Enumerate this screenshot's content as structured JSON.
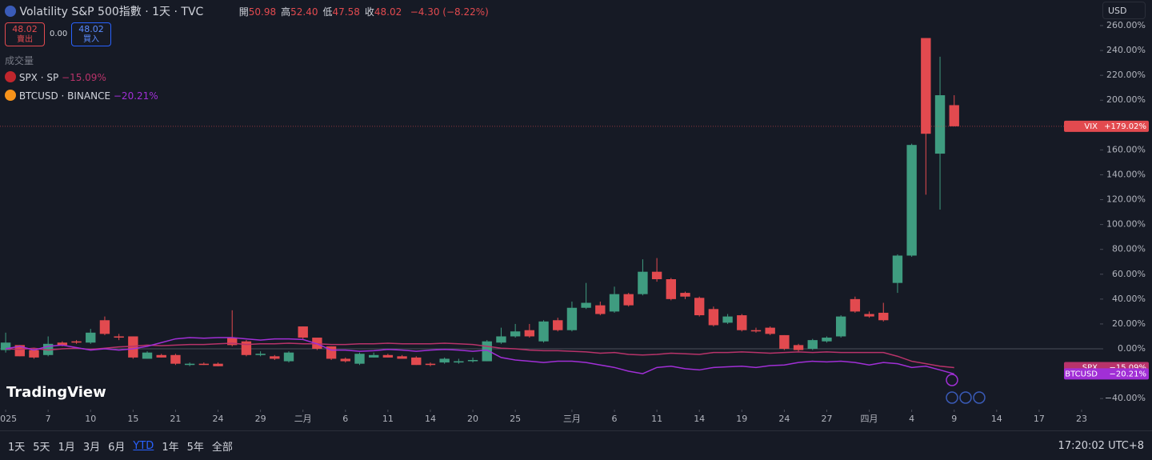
{
  "header": {
    "title": "Volatility S&P 500指數 · 1天 · TVC",
    "ohlc": [
      {
        "label": "開",
        "value": "50.98"
      },
      {
        "label": "高",
        "value": "52.40"
      },
      {
        "label": "低",
        "value": "47.58"
      },
      {
        "label": "收",
        "value": "48.02"
      }
    ],
    "change": "−4.30 (−8.22%)",
    "sell_price": "48.02",
    "sell_label": "賣出",
    "spread": "0.00",
    "buy_price": "48.02",
    "buy_label": "買入",
    "volume_label": "成交量",
    "currency": "USD"
  },
  "chart_data": {
    "type": "candlestick",
    "name": "VIX",
    "last_label": "+179.02%",
    "up_color": "#3f9c80",
    "down_color": "#e24a4f",
    "open": [
      -1,
      3,
      -1,
      -5,
      5,
      6,
      5,
      23,
      10,
      10,
      -8,
      -5,
      -5,
      -13,
      -12,
      -12,
      9,
      6,
      -5,
      -6,
      -10,
      18,
      9,
      2,
      -8,
      -12,
      -7,
      -5,
      -6,
      -7,
      -12,
      -11,
      -11,
      -10,
      -10,
      5,
      10,
      15,
      6,
      23,
      15,
      33,
      35,
      30,
      44,
      44,
      62,
      56,
      45,
      41,
      32,
      21,
      27,
      15,
      17,
      11,
      3,
      0,
      6,
      10,
      40,
      28,
      29,
      53,
      75,
      250,
      157,
      196
    ],
    "high": [
      13,
      3,
      0,
      10,
      6,
      7,
      16,
      26,
      12,
      10,
      -2,
      -4,
      -4,
      -11,
      -11,
      -11,
      31,
      7,
      -2,
      -5,
      -2,
      18,
      9,
      2,
      -7,
      -3,
      -3,
      -4,
      -5,
      -6,
      -11,
      -7,
      -8,
      -7,
      7,
      17,
      20,
      20,
      23,
      25,
      38,
      53,
      38,
      50,
      45,
      72,
      73,
      57,
      46,
      42,
      34,
      28,
      28,
      17,
      18,
      11,
      4,
      8,
      10,
      27,
      42,
      30,
      37,
      76,
      165,
      250,
      235,
      204
    ],
    "low": [
      -3,
      -6,
      -8,
      -6,
      2,
      4,
      4,
      11,
      7,
      -8,
      -8,
      -7,
      -13,
      -14,
      -13,
      -14,
      2,
      -6,
      -6,
      -9,
      -11,
      8,
      -1,
      -9,
      -11,
      -13,
      -7,
      -7,
      -8,
      -13,
      -14,
      -12,
      -12,
      -11,
      -10,
      4,
      9,
      9,
      5,
      14,
      14,
      32,
      27,
      29,
      34,
      43,
      54,
      39,
      40,
      26,
      18,
      20,
      14,
      13,
      11,
      -1,
      -2,
      -1,
      5,
      9,
      29,
      25,
      22,
      45,
      74,
      124,
      112,
      179.02
    ],
    "close": [
      5,
      -6,
      -7,
      4,
      3,
      5,
      13,
      12,
      9,
      -7,
      -3,
      -7,
      -12,
      -12,
      -13,
      -14,
      3,
      -5,
      -4,
      -8,
      -3,
      9,
      0,
      -8,
      -10,
      -4,
      -5,
      -7,
      -8,
      -13,
      -13,
      -8,
      -10,
      -9,
      6,
      10,
      14,
      10,
      22,
      15,
      33,
      37,
      28,
      44,
      35,
      62,
      56,
      40,
      42,
      27,
      19,
      26,
      15,
      14,
      12,
      0,
      -1,
      7,
      9,
      26,
      30,
      26,
      23,
      75,
      164,
      173,
      204,
      179.02
    ],
    "series": [
      {
        "name": "SPX",
        "legend": "SPX · SP",
        "color": "#b8336a",
        "last_label": "−15.09%",
        "values": [
          0,
          -0.5,
          0.5,
          -1,
          0,
          0.5,
          -0.5,
          0.5,
          1.5,
          2,
          3,
          2.5,
          3,
          3.5,
          3.5,
          4,
          4.5,
          3.5,
          4,
          4,
          4.5,
          4,
          4,
          3.5,
          3.5,
          4,
          4,
          4.5,
          4,
          4,
          4,
          4.5,
          4,
          3.5,
          2,
          0.5,
          0,
          -1,
          -1.5,
          -1.5,
          -2,
          -2.5,
          -3.5,
          -3,
          -4.5,
          -5,
          -4.5,
          -3.5,
          -4,
          -4.5,
          -3,
          -3,
          -2.5,
          -3,
          -3.5,
          -3,
          -2.5,
          -3,
          -2.5,
          -3,
          -3,
          -3,
          -3,
          -6,
          -10,
          -12,
          -14,
          -15.09
        ]
      },
      {
        "name": "BTCUSD",
        "legend": "BTCUSD · BINANCE",
        "color": "#a12fd6",
        "last_label": "−20.21%",
        "values": [
          0,
          2,
          -1,
          2,
          3,
          1,
          -1,
          0,
          -1,
          0,
          2,
          5,
          8,
          9,
          8.5,
          9,
          9,
          8,
          7,
          8,
          8,
          7.5,
          4,
          -1,
          -1,
          -2,
          -1.5,
          -0.5,
          -1,
          -2,
          -1,
          -0.5,
          -1,
          -2,
          -1,
          -7,
          -9,
          -10,
          -11,
          -10,
          -10,
          -11,
          -13,
          -15,
          -18,
          -20,
          -15,
          -14,
          -16,
          -17,
          -15,
          -14.5,
          -14,
          -15,
          -13.5,
          -13,
          -11,
          -10,
          -10.5,
          -10,
          -11,
          -13,
          -11,
          -12,
          -15,
          -14,
          -17,
          -20.21
        ]
      }
    ],
    "xlim": [
      -0.4,
      77.3
    ],
    "ylim": [
      -48.9,
      280.6
    ],
    "yticks": [
      {
        "value": 260,
        "label": "260.00%"
      },
      {
        "value": 240,
        "label": "240.00%"
      },
      {
        "value": 220,
        "label": "220.00%"
      },
      {
        "value": 200,
        "label": "200.00%"
      },
      {
        "value": 180,
        "label": "180.00%"
      },
      {
        "value": 160,
        "label": "160.00%"
      },
      {
        "value": 140,
        "label": "140.00%"
      },
      {
        "value": 120,
        "label": "120.00%"
      },
      {
        "value": 100,
        "label": "100.00%"
      },
      {
        "value": 80,
        "label": "80.00%"
      },
      {
        "value": 60,
        "label": "60.00%"
      },
      {
        "value": 40,
        "label": "40.00%"
      },
      {
        "value": 20,
        "label": "20.00%"
      },
      {
        "value": 0,
        "label": "0.00%"
      },
      {
        "value": -20,
        "label": "−20.00%"
      },
      {
        "value": -40,
        "label": "−40.00%"
      }
    ],
    "xticks": [
      {
        "value": 0,
        "label": "2025"
      },
      {
        "value": 3,
        "label": "7"
      },
      {
        "value": 6,
        "label": "10"
      },
      {
        "value": 9,
        "label": "15"
      },
      {
        "value": 12,
        "label": "21"
      },
      {
        "value": 15,
        "label": "24"
      },
      {
        "value": 18,
        "label": "29"
      },
      {
        "value": 21,
        "label": "二月"
      },
      {
        "value": 24,
        "label": "6"
      },
      {
        "value": 27,
        "label": "11"
      },
      {
        "value": 30,
        "label": "14"
      },
      {
        "value": 33,
        "label": "20"
      },
      {
        "value": 36,
        "label": "25"
      },
      {
        "value": 40,
        "label": "三月"
      },
      {
        "value": 43,
        "label": "6"
      },
      {
        "value": 46,
        "label": "11"
      },
      {
        "value": 49,
        "label": "14"
      },
      {
        "value": 52,
        "label": "19"
      },
      {
        "value": 55,
        "label": "24"
      },
      {
        "value": 58,
        "label": "27"
      },
      {
        "value": 61,
        "label": "四月"
      },
      {
        "value": 64,
        "label": "4"
      },
      {
        "value": 67,
        "label": "9"
      },
      {
        "value": 70,
        "label": "14"
      },
      {
        "value": 73,
        "label": "17"
      },
      {
        "value": 76,
        "label": "23"
      }
    ],
    "grid": false
  },
  "toolbar": {
    "ranges": [
      "1天",
      "5天",
      "1月",
      "3月",
      "6月",
      "YTD",
      "1年",
      "5年",
      "全部"
    ],
    "active": "YTD",
    "clock": "17:20:02 UTC+8",
    "logo": "TradingView"
  }
}
